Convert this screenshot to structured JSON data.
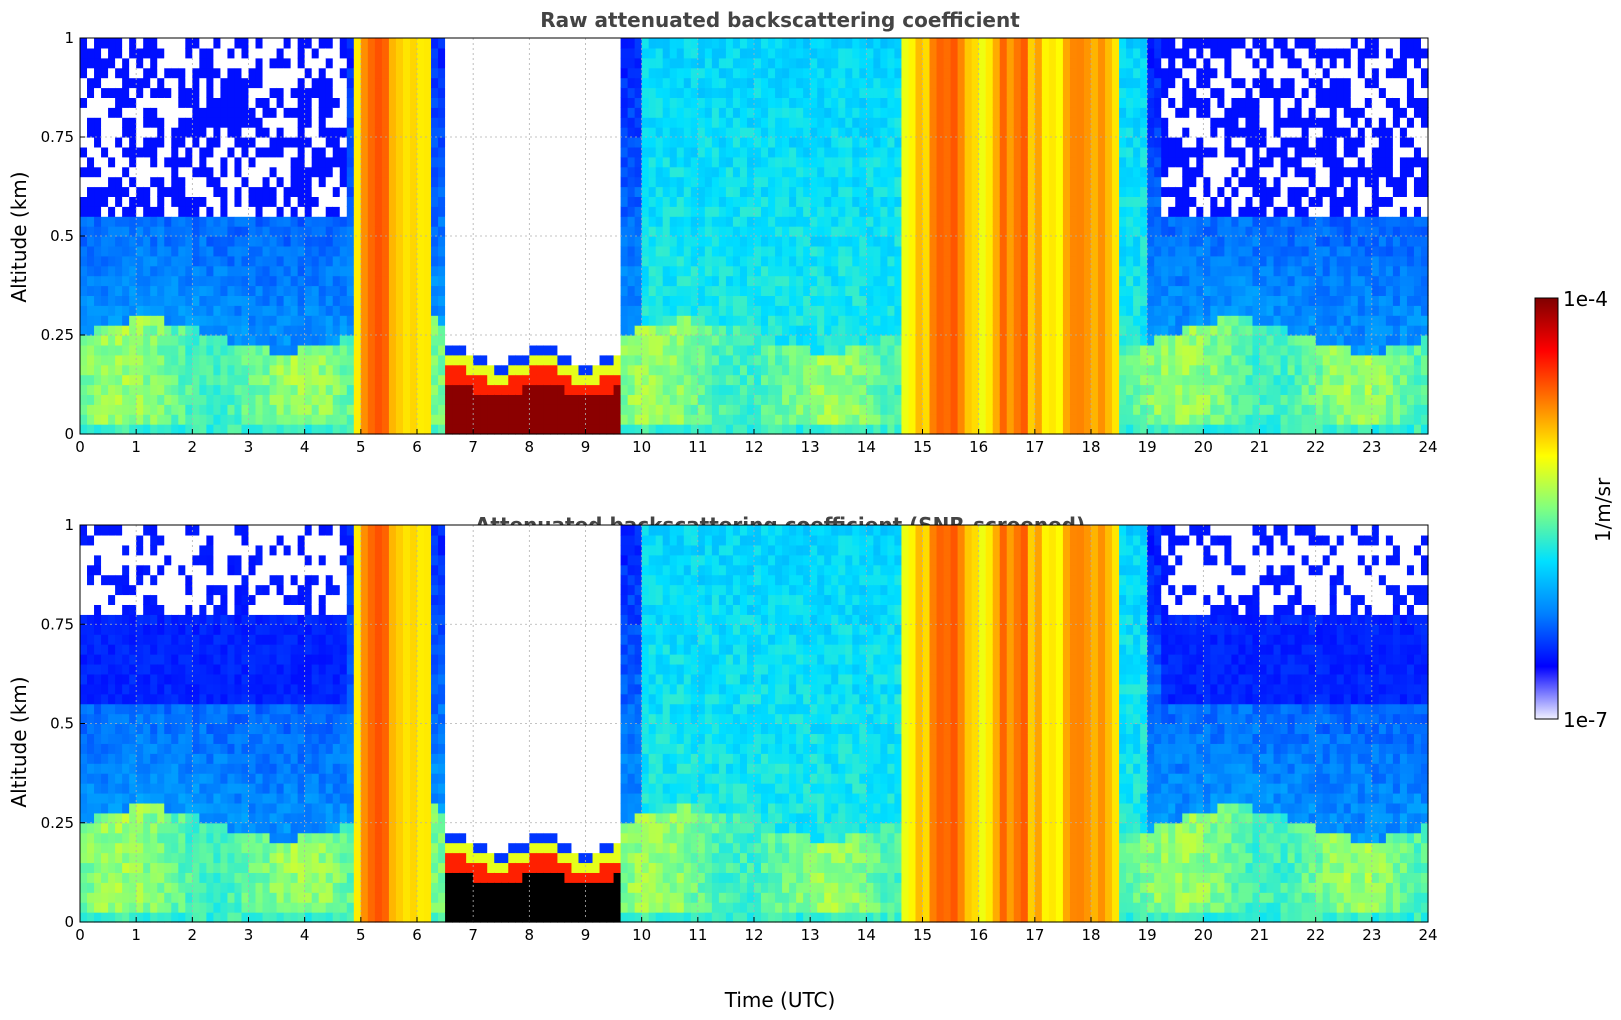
{
  "chart_data": [
    {
      "type": "heatmap",
      "title": "Raw attenuated backscattering coefficient",
      "xlabel": "",
      "ylabel": "Altitude (km)",
      "xlim": [
        0,
        24
      ],
      "ylim": [
        0,
        1
      ],
      "xticks": [
        "0",
        "1",
        "2",
        "3",
        "4",
        "5",
        "6",
        "7",
        "8",
        "9",
        "10",
        "11",
        "12",
        "13",
        "14",
        "15",
        "16",
        "17",
        "18",
        "19",
        "20",
        "21",
        "22",
        "23",
        "24"
      ],
      "yticks": [
        "0",
        "0.25",
        "0.5",
        "0.75",
        "1"
      ],
      "grid": true,
      "screened": false
    },
    {
      "type": "heatmap",
      "title": "Attenuated backscattering coefficient (SNR-screened)",
      "xlabel": "Time (UTC)",
      "ylabel": "Altitude (km)",
      "xlim": [
        0,
        24
      ],
      "ylim": [
        0,
        1
      ],
      "xticks": [
        "0",
        "1",
        "2",
        "3",
        "4",
        "5",
        "6",
        "7",
        "8",
        "9",
        "10",
        "11",
        "12",
        "13",
        "14",
        "15",
        "16",
        "17",
        "18",
        "19",
        "20",
        "21",
        "22",
        "23",
        "24"
      ],
      "yticks": [
        "0",
        "0.25",
        "0.5",
        "0.75",
        "1"
      ],
      "grid": true,
      "screened": true
    }
  ],
  "colorbar": {
    "label": "1/m/sr",
    "max_label": "1e-4",
    "min_label": "1e-7",
    "scale": "log",
    "colors": [
      "#f0f0ff",
      "#0000ff",
      "#0080ff",
      "#00e0ff",
      "#80ff80",
      "#ffff00",
      "#ff8000",
      "#ff0000",
      "#800000"
    ]
  },
  "profile_features": {
    "fog_layer_hours": [
      6.45,
      9.6
    ],
    "fog_top_km": 0.2,
    "heavy_aerosol_hours": [
      [
        4.9,
        6.25
      ],
      [
        14.6,
        18.5
      ]
    ],
    "boundary_layer_top_km": 0.25
  }
}
